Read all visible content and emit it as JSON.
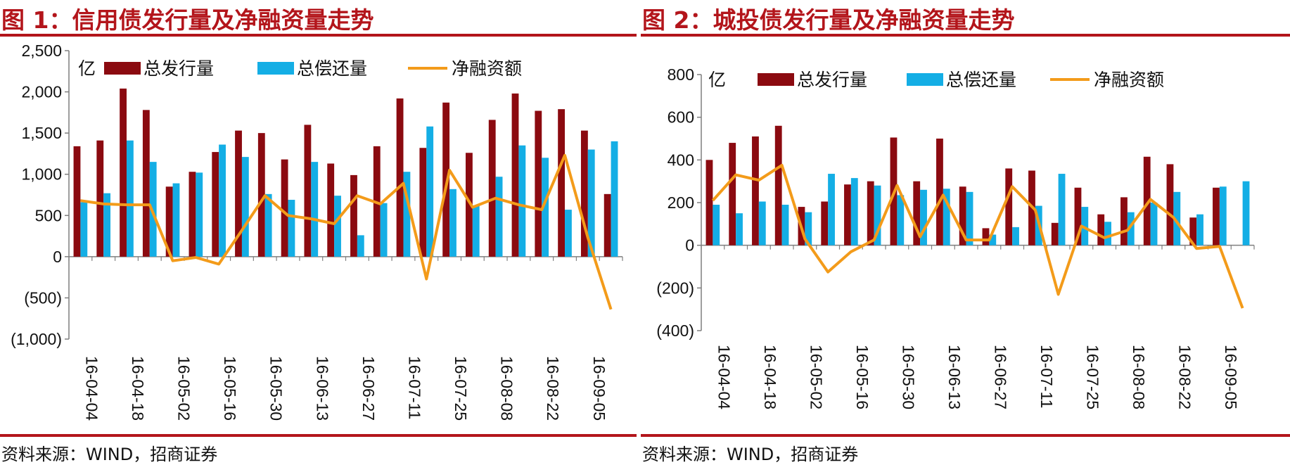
{
  "colors": {
    "title": "#b3151b",
    "issuance": "#8b0a10",
    "repayment": "#14aee5",
    "net": "#f39b1a",
    "axis": "#7f7f7f"
  },
  "panels": [
    {
      "title": "图 1：信用债发行量及净融资量走势",
      "source": "资料来源：WIND，招商证券"
    },
    {
      "title": "图 2：城投债发行量及净融资量走势",
      "source": "资料来源：WIND，招商证券"
    }
  ],
  "chart_data": [
    {
      "type": "bar",
      "unit": "亿",
      "ylim": [
        -1000,
        2500
      ],
      "yticks": [
        2500,
        2000,
        1500,
        1000,
        500,
        0,
        -500,
        -1000
      ],
      "ytick_labels": [
        "2,500",
        "2,000",
        "1,500",
        "1,000",
        "500",
        "0",
        "(500)",
        "(1,000)"
      ],
      "x_tick_labels": [
        "16-04-04",
        "16-04-18",
        "16-05-02",
        "16-05-16",
        "16-05-30",
        "16-06-13",
        "16-06-27",
        "16-07-11",
        "16-07-25",
        "16-08-08",
        "16-08-22",
        "16-09-05"
      ],
      "legend": [
        "总发行量",
        "总偿还量",
        "净融资额"
      ],
      "series": [
        {
          "name": "总发行量",
          "type": "bar",
          "values": [
            1340,
            1410,
            2040,
            1780,
            850,
            1030,
            1270,
            1530,
            1500,
            1180,
            1600,
            1130,
            990,
            1340,
            1920,
            1320,
            1870,
            1260,
            1660,
            1980,
            1770,
            1790,
            1530,
            760
          ]
        },
        {
          "name": "总偿还量",
          "type": "bar",
          "values": [
            660,
            770,
            1410,
            1150,
            890,
            1020,
            1360,
            1210,
            760,
            690,
            1150,
            740,
            260,
            650,
            1030,
            1580,
            820,
            620,
            970,
            1350,
            1200,
            570,
            1300,
            1400
          ]
        },
        {
          "name": "净融资额",
          "type": "line",
          "values": [
            680,
            640,
            630,
            630,
            -50,
            -10,
            -90,
            320,
            740,
            500,
            460,
            400,
            740,
            640,
            890,
            -270,
            1050,
            600,
            710,
            630,
            570,
            1230,
            230,
            -640
          ]
        }
      ]
    },
    {
      "type": "bar",
      "unit": "亿",
      "ylim": [
        -400,
        800
      ],
      "yticks": [
        800,
        600,
        400,
        200,
        0,
        -200,
        -400
      ],
      "ytick_labels": [
        "800",
        "600",
        "400",
        "200",
        "0",
        "(200)",
        "(400)"
      ],
      "x_tick_labels": [
        "16-04-04",
        "16-04-18",
        "16-05-02",
        "16-05-16",
        "16-05-30",
        "16-06-13",
        "16-06-27",
        "16-07-11",
        "16-07-25",
        "16-08-08",
        "16-08-22",
        "16-09-05"
      ],
      "legend": [
        "总发行量",
        "总偿还量",
        "净融资额"
      ],
      "series": [
        {
          "name": "总发行量",
          "type": "bar",
          "values": [
            400,
            480,
            510,
            560,
            180,
            205,
            285,
            300,
            505,
            300,
            500,
            275,
            80,
            360,
            350,
            105,
            270,
            145,
            225,
            415,
            380,
            130,
            270,
            0
          ]
        },
        {
          "name": "总偿还量",
          "type": "bar",
          "values": [
            190,
            150,
            205,
            190,
            155,
            335,
            315,
            280,
            235,
            260,
            265,
            250,
            50,
            85,
            185,
            335,
            180,
            110,
            155,
            200,
            250,
            145,
            275,
            300
          ]
        },
        {
          "name": "净融资额",
          "type": "line",
          "values": [
            210,
            330,
            305,
            375,
            30,
            -125,
            -30,
            25,
            280,
            40,
            235,
            25,
            25,
            275,
            165,
            -230,
            90,
            35,
            70,
            215,
            130,
            -15,
            -5,
            -295
          ]
        }
      ]
    }
  ]
}
